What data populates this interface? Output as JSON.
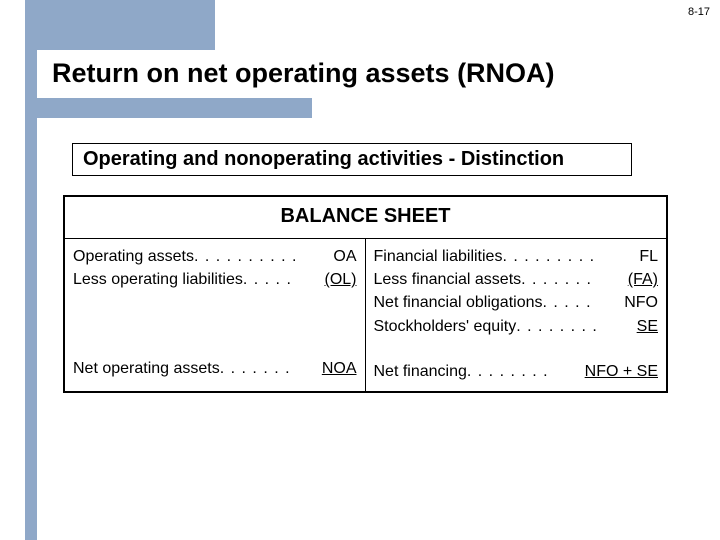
{
  "slideNumber": "8-17",
  "title": "Return on net operating assets (RNOA)",
  "subtitle": "Operating and nonoperating activities - Distinction",
  "balanceSheet": {
    "header": "BALANCE SHEET",
    "left": {
      "row1": {
        "label": "Operating assets",
        "dots": " . . . . . . . . . . ",
        "val": "OA"
      },
      "row2": {
        "label": "Less operating liabilities",
        "dots": " . . . . . ",
        "val": "(OL)"
      },
      "rowTotal": {
        "label": "Net operating assets",
        "dots": ". . . . . . . ",
        "val": "NOA"
      }
    },
    "right": {
      "row1": {
        "label": "Financial liabilities",
        "dots": " . . . . . . . . . ",
        "val": "FL"
      },
      "row2": {
        "label": "Less financial assets",
        "dots": " . . . . . . . ",
        "val": "(FA)"
      },
      "row3": {
        "label": "Net financial obligations",
        "dots": ". . . . . ",
        "val": "NFO"
      },
      "row4": {
        "label": "Stockholders' equity",
        "dots": ". . . . . . . . ",
        "val": "SE"
      },
      "rowTotal": {
        "label": "Net financing",
        "dots": " . . . . . . . . ",
        "val": "NFO + SE"
      }
    }
  },
  "colors": {
    "accent": "#8fa8c8",
    "text": "#000000",
    "background": "#ffffff"
  }
}
